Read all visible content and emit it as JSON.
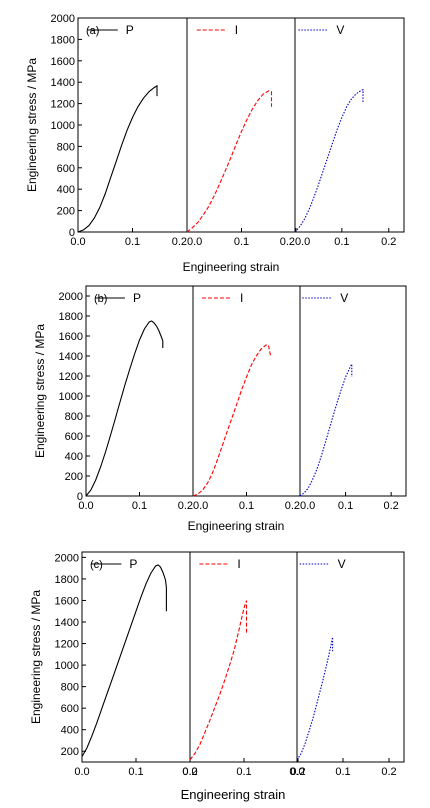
{
  "chart_data": [
    {
      "type": "line",
      "panel_label": "(a)",
      "xlabel": "Engineering strain",
      "ylabel": "Engineering stress / MPa",
      "ylim": [
        0,
        2000
      ],
      "y_ticks": [
        0,
        200,
        400,
        600,
        800,
        1000,
        1200,
        1400,
        1600,
        1800,
        2000
      ],
      "xlim": [
        0,
        0.2
      ],
      "x_tick_labels": [
        [
          "0.0",
          "0.1",
          "0.2"
        ],
        [
          "0.0",
          "0.1",
          "0.2"
        ],
        [
          "0.0",
          "0.1",
          "0.2"
        ]
      ],
      "x_tick_joined": [
        "0.20.0",
        "0.20.0"
      ],
      "legend_placement": "top",
      "series": [
        {
          "name": "P",
          "color": "#000000",
          "dash": "solid",
          "x": [
            0.0,
            0.01,
            0.02,
            0.03,
            0.04,
            0.05,
            0.06,
            0.07,
            0.08,
            0.09,
            0.1,
            0.11,
            0.12,
            0.13,
            0.14,
            0.145,
            0.145
          ],
          "y": [
            0,
            20,
            60,
            130,
            230,
            360,
            510,
            660,
            810,
            950,
            1070,
            1170,
            1250,
            1310,
            1350,
            1365,
            1270
          ]
        },
        {
          "name": "I",
          "color": "#ff0000",
          "dash": "dashed",
          "x": [
            0.0,
            0.01,
            0.02,
            0.03,
            0.04,
            0.05,
            0.06,
            0.07,
            0.08,
            0.09,
            0.1,
            0.11,
            0.12,
            0.13,
            0.14,
            0.15,
            0.155,
            0.155
          ],
          "y": [
            0,
            40,
            90,
            160,
            240,
            340,
            450,
            570,
            690,
            820,
            940,
            1050,
            1150,
            1230,
            1290,
            1320,
            1310,
            1170
          ]
        },
        {
          "name": "V",
          "color": "#0000cc",
          "dash": "dotted",
          "x": [
            0.0,
            0.01,
            0.02,
            0.03,
            0.04,
            0.05,
            0.06,
            0.07,
            0.08,
            0.09,
            0.1,
            0.11,
            0.12,
            0.13,
            0.14,
            0.145,
            0.145
          ],
          "y": [
            0,
            50,
            120,
            210,
            320,
            440,
            570,
            700,
            830,
            960,
            1070,
            1170,
            1240,
            1290,
            1320,
            1330,
            1210
          ]
        }
      ]
    },
    {
      "type": "line",
      "panel_label": "(b)",
      "xlabel": "Engineering strain",
      "ylabel": "Engineering stress / MPa",
      "ylim": [
        0,
        2100
      ],
      "y_ticks": [
        0,
        200,
        400,
        600,
        800,
        1000,
        1200,
        1400,
        1600,
        1800,
        2000
      ],
      "xlim": [
        0,
        0.22
      ],
      "x_tick_labels": [
        [
          "0.0",
          "0.1",
          "0.2"
        ],
        [
          "0.0",
          "0.1",
          "0.2"
        ],
        [
          "0.0",
          "0.1",
          "0.2"
        ]
      ],
      "x_tick_joined": [
        "0.20.0",
        "0.20.0"
      ],
      "legend_placement": "top",
      "series": [
        {
          "name": "P",
          "color": "#000000",
          "dash": "solid",
          "x": [
            0.0,
            0.01,
            0.02,
            0.03,
            0.04,
            0.05,
            0.06,
            0.07,
            0.08,
            0.09,
            0.1,
            0.11,
            0.12,
            0.13,
            0.135,
            0.14,
            0.145,
            0.15,
            0.155,
            0.158,
            0.158
          ],
          "y": [
            0,
            60,
            160,
            290,
            440,
            600,
            770,
            940,
            1110,
            1270,
            1420,
            1560,
            1670,
            1740,
            1750,
            1730,
            1700,
            1650,
            1590,
            1550,
            1480
          ]
        },
        {
          "name": "I",
          "color": "#ff0000",
          "dash": "dashed",
          "x": [
            0.0,
            0.01,
            0.02,
            0.03,
            0.04,
            0.05,
            0.06,
            0.07,
            0.08,
            0.09,
            0.1,
            0.11,
            0.12,
            0.13,
            0.14,
            0.15,
            0.155,
            0.16
          ],
          "y": [
            0,
            20,
            60,
            130,
            230,
            360,
            500,
            640,
            780,
            920,
            1060,
            1190,
            1310,
            1400,
            1470,
            1510,
            1510,
            1390
          ]
        },
        {
          "name": "V",
          "color": "#0000cc",
          "dash": "dotted",
          "x": [
            0.0,
            0.01,
            0.02,
            0.03,
            0.04,
            0.05,
            0.06,
            0.07,
            0.08,
            0.09,
            0.1,
            0.11,
            0.12,
            0.125,
            0.125
          ],
          "y": [
            0,
            30,
            80,
            160,
            260,
            380,
            520,
            660,
            800,
            940,
            1070,
            1190,
            1280,
            1320,
            1190
          ]
        }
      ]
    },
    {
      "type": "line",
      "panel_label": "(c)",
      "xlabel": "Engineering strain",
      "ylabel": "Engineering stress / MPa",
      "ylim": [
        100,
        2050
      ],
      "y_ticks": [
        200,
        400,
        600,
        800,
        1000,
        1200,
        1400,
        1600,
        1800,
        2000
      ],
      "xlim": [
        0,
        0.22
      ],
      "x_tick_labels": [
        [
          "0.0",
          "0.1",
          "0.2"
        ],
        [
          "0.0",
          "0.1",
          "0.2"
        ],
        [
          "0.0",
          "0.1",
          "0.2"
        ]
      ],
      "x_tick_joined": [],
      "legend_placement": "top",
      "series": [
        {
          "name": "P",
          "color": "#000000",
          "dash": "solid",
          "x": [
            0.0,
            0.01,
            0.02,
            0.03,
            0.04,
            0.05,
            0.06,
            0.07,
            0.08,
            0.09,
            0.1,
            0.11,
            0.12,
            0.13,
            0.14,
            0.15,
            0.155,
            0.16,
            0.165,
            0.17,
            0.172,
            0.172
          ],
          "y": [
            150,
            230,
            340,
            460,
            590,
            720,
            850,
            980,
            1110,
            1240,
            1370,
            1500,
            1630,
            1750,
            1850,
            1920,
            1930,
            1910,
            1860,
            1790,
            1720,
            1500
          ]
        },
        {
          "name": "I",
          "color": "#ff0000",
          "dash": "dashed",
          "x": [
            0.0,
            0.01,
            0.02,
            0.03,
            0.04,
            0.05,
            0.06,
            0.07,
            0.08,
            0.09,
            0.1,
            0.105,
            0.11,
            0.115,
            0.115
          ],
          "y": [
            120,
            180,
            260,
            370,
            480,
            600,
            720,
            850,
            990,
            1140,
            1330,
            1430,
            1530,
            1600,
            1300
          ]
        },
        {
          "name": "V",
          "color": "#0000cc",
          "dash": "dotted",
          "x": [
            0.0,
            0.01,
            0.02,
            0.03,
            0.04,
            0.05,
            0.06,
            0.07,
            0.08,
            0.085,
            0.085
          ],
          "y": [
            120,
            180,
            280,
            400,
            530,
            680,
            830,
            990,
            1160,
            1260,
            1130
          ]
        }
      ]
    }
  ]
}
